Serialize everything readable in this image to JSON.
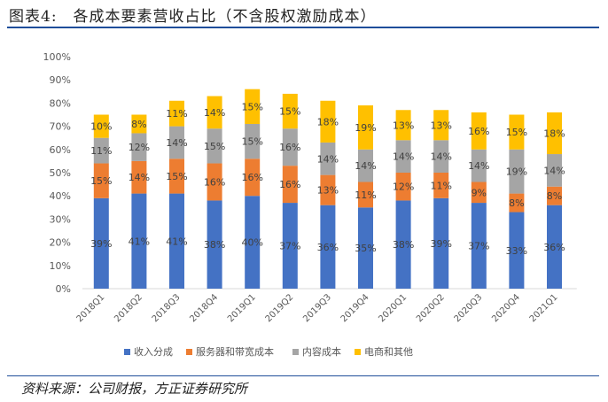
{
  "title": "图表4:　各成本要素营收占比（不含股权激励成本）",
  "source": "资料来源：公司财报，方正证券研究所",
  "chart_data": {
    "type": "bar",
    "stacked": true,
    "categories": [
      "2018Q1",
      "2018Q2",
      "2018Q3",
      "2018Q4",
      "2019Q1",
      "2019Q2",
      "2019Q3",
      "2019Q4",
      "2020Q1",
      "2020Q2",
      "2020Q3",
      "2020Q4",
      "2021Q1"
    ],
    "series": [
      {
        "name": "收入分成",
        "color": "#4472c4",
        "values": [
          39,
          41,
          41,
          38,
          40,
          37,
          36,
          35,
          38,
          39,
          37,
          33,
          36
        ]
      },
      {
        "name": "服务器和带宽成本",
        "color": "#ed7d31",
        "values": [
          15,
          14,
          15,
          16,
          16,
          16,
          13,
          11,
          12,
          11,
          9,
          8,
          8
        ]
      },
      {
        "name": "内容成本",
        "color": "#a5a5a5",
        "values": [
          11,
          12,
          14,
          15,
          15,
          16,
          14,
          14,
          14,
          14,
          14,
          19,
          14
        ]
      },
      {
        "name": "电商和其他",
        "color": "#ffc000",
        "values": [
          10,
          8,
          11,
          14,
          15,
          15,
          18,
          19,
          13,
          13,
          16,
          15,
          18
        ]
      }
    ],
    "yticks": [
      "0%",
      "10%",
      "20%",
      "30%",
      "40%",
      "50%",
      "60%",
      "70%",
      "80%",
      "90%",
      "100%"
    ],
    "ylim": [
      0,
      100
    ],
    "legend": "bottom",
    "grid": false
  }
}
